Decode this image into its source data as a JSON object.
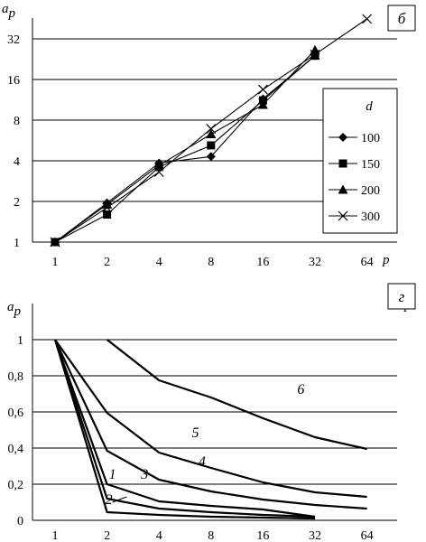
{
  "chart_data": [
    {
      "type": "line",
      "panel_label": "б",
      "xlabel": "p",
      "ylabel": "a",
      "ylabel_sub": "p",
      "x_ticks": [
        "1",
        "2",
        "4",
        "8",
        "16",
        "32",
        "64"
      ],
      "y_ticks": [
        "1",
        "2",
        "4",
        "8",
        "16",
        "32"
      ],
      "x_scale": "log2",
      "y_scale": "log2",
      "xlim": [
        1,
        64
      ],
      "ylim": [
        1,
        32
      ],
      "grid": "horizontal",
      "legend_title": "d",
      "legend_position": "right",
      "series": [
        {
          "name": "100",
          "marker": "diamond",
          "points": [
            [
              1,
              1
            ],
            [
              2,
              1.95
            ],
            [
              4,
              3.85
            ],
            [
              8,
              4.3
            ],
            [
              16,
              11.5
            ],
            [
              32,
              24
            ]
          ]
        },
        {
          "name": "150",
          "marker": "square",
          "points": [
            [
              1,
              1
            ],
            [
              2,
              1.6
            ],
            [
              4,
              3.6
            ],
            [
              8,
              5.2
            ],
            [
              16,
              11.2
            ],
            [
              32,
              24
            ]
          ]
        },
        {
          "name": "200",
          "marker": "triangle",
          "points": [
            [
              1,
              1
            ],
            [
              2,
              1.9
            ],
            [
              4,
              3.7
            ],
            [
              8,
              6.3
            ],
            [
              16,
              10.4
            ],
            [
              32,
              26.5
            ]
          ]
        },
        {
          "name": "300",
          "marker": "cross",
          "points": [
            [
              1,
              1
            ],
            [
              2,
              1.8
            ],
            [
              4,
              3.3
            ],
            [
              8,
              6.9
            ],
            [
              16,
              13.5
            ],
            [
              32,
              24.5
            ],
            [
              64,
              45
            ]
          ]
        }
      ]
    },
    {
      "type": "line",
      "panel_label": "г",
      "xlabel": "p",
      "ylabel": "a",
      "ylabel_sub": "p",
      "x_ticks": [
        "1",
        "2",
        "4",
        "8",
        "16",
        "32",
        "64"
      ],
      "y_ticks": [
        "0",
        "0,2",
        "0,4",
        "0,6",
        "0,8",
        "1"
      ],
      "x_scale": "log2",
      "xlim": [
        1,
        64
      ],
      "ylim": [
        0,
        1
      ],
      "grid": "horizontal",
      "series": [
        {
          "label": "1",
          "points": [
            [
              1,
              1
            ],
            [
              2,
              0.045
            ],
            [
              4,
              0.03
            ],
            [
              8,
              0.02
            ],
            [
              16,
              0.015
            ],
            [
              32,
              0.01
            ]
          ]
        },
        {
          "label": "2",
          "points": [
            [
              1,
              1
            ],
            [
              2,
              0.12
            ],
            [
              4,
              0.065
            ],
            [
              8,
              0.045
            ],
            [
              16,
              0.03
            ],
            [
              32,
              0.02
            ]
          ]
        },
        {
          "label": "3",
          "points": [
            [
              1,
              1
            ],
            [
              2,
              0.2
            ],
            [
              4,
              0.105
            ],
            [
              8,
              0.08
            ],
            [
              16,
              0.06
            ],
            [
              32,
              0.02
            ]
          ]
        },
        {
          "label": "4",
          "points": [
            [
              1,
              1
            ],
            [
              2,
              0.385
            ],
            [
              4,
              0.225
            ],
            [
              8,
              0.16
            ],
            [
              16,
              0.115
            ],
            [
              32,
              0.085
            ],
            [
              64,
              0.065
            ]
          ]
        },
        {
          "label": "5",
          "points": [
            [
              1,
              1
            ],
            [
              2,
              0.595
            ],
            [
              4,
              0.375
            ],
            [
              8,
              0.29
            ],
            [
              16,
              0.21
            ],
            [
              32,
              0.155
            ],
            [
              64,
              0.13
            ]
          ]
        },
        {
          "label": "6",
          "points": [
            [
              2,
              1
            ],
            [
              4,
              0.775
            ],
            [
              8,
              0.68
            ],
            [
              16,
              0.565
            ],
            [
              32,
              0.46
            ],
            [
              64,
              0.395
            ]
          ]
        }
      ],
      "curve_label_positions": [
        [
          2.15,
          0.23
        ],
        [
          2.05,
          0.09
        ],
        [
          3.3,
          0.23
        ],
        [
          7.1,
          0.3
        ],
        [
          6.5,
          0.46
        ],
        [
          26.5,
          0.7
        ]
      ]
    }
  ]
}
